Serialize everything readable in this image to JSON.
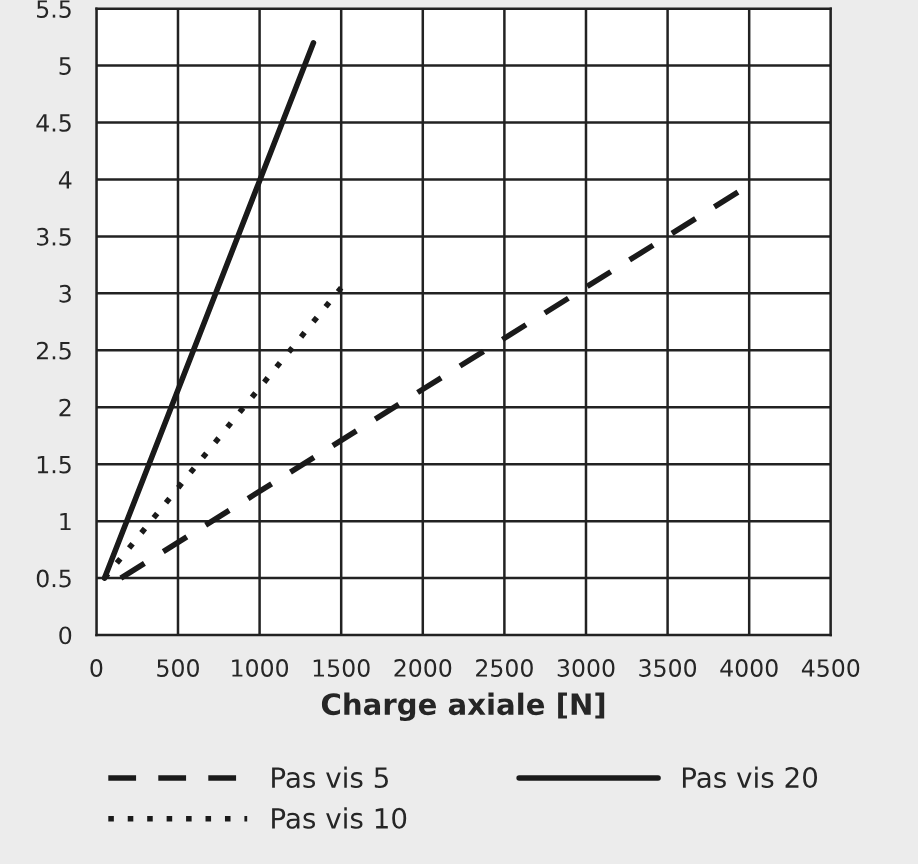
{
  "chart_data": {
    "type": "line",
    "xlabel": "Charge axiale [N]",
    "xlim": [
      0,
      4500
    ],
    "xticks": [
      0,
      500,
      1000,
      1500,
      2000,
      2500,
      3000,
      3500,
      4000,
      4500
    ],
    "ylim": [
      0,
      5.5
    ],
    "yticks": [
      0,
      0.5,
      1,
      1.5,
      2,
      2.5,
      3,
      3.5,
      4,
      4.5,
      5,
      5.5
    ],
    "grid": true,
    "legend": "bottom",
    "series": [
      {
        "name": "Pas vis 5",
        "color": "#1a1a1a",
        "line_style": "dashed",
        "x": [
          150,
          4000
        ],
        "values": [
          0.5,
          3.95
        ]
      },
      {
        "name": "Pas vis 10",
        "color": "#1a1a1a",
        "line_style": "dotted",
        "x": [
          50,
          1500
        ],
        "values": [
          0.5,
          3.05
        ]
      },
      {
        "name": "Pas vis 20",
        "color": "#1a1a1a",
        "line_style": "solid",
        "x": [
          50,
          1330
        ],
        "values": [
          0.5,
          5.2
        ]
      }
    ]
  }
}
